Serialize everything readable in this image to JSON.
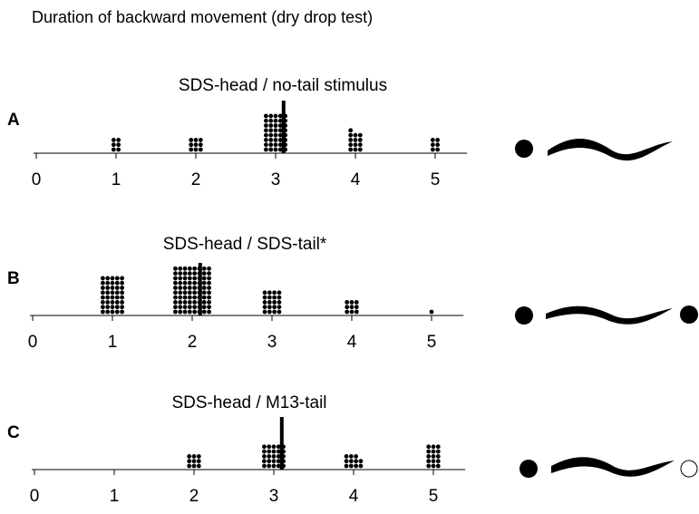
{
  "title": "Duration of backward movement (dry drop test)",
  "chart_data": [
    {
      "type": "dotplot",
      "label": "A",
      "title": "SDS-head / no-tail stimulus",
      "x": [
        1,
        2,
        3,
        4,
        5
      ],
      "values": [
        6,
        9,
        40,
        13,
        6
      ],
      "mean": 3.1,
      "xlim": [
        0,
        5.4
      ],
      "xticks": [
        0,
        1,
        2,
        3,
        4,
        5
      ]
    },
    {
      "type": "dotplot",
      "label": "B",
      "title": "SDS-head / SDS-tail*",
      "x": [
        1,
        2,
        3,
        4,
        5
      ],
      "values": [
        40,
        80,
        20,
        9,
        1
      ],
      "mean": 2.1,
      "xlim": [
        0,
        5.4
      ],
      "xticks": [
        0,
        1,
        2,
        3,
        4,
        5
      ]
    },
    {
      "type": "dotplot",
      "label": "C",
      "title": "SDS-head / M13-tail",
      "x": [
        2,
        3,
        4,
        5
      ],
      "values": [
        9,
        25,
        11,
        15
      ],
      "mean": 3.1,
      "xlim": [
        0,
        5.4
      ],
      "xticks": [
        0,
        1,
        2,
        3,
        4,
        5
      ]
    }
  ]
}
